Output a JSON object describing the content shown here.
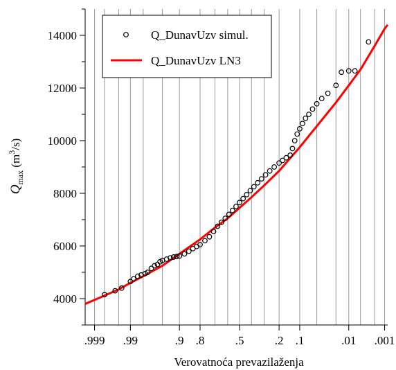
{
  "chart_data": {
    "type": "probability",
    "x_label": "Verovatnoća prevazilaženja",
    "y_label": {
      "symbol": "Q",
      "subscript": "max",
      "unit_open": " (m",
      "superscript": "3",
      "unit_close": "/s)"
    },
    "x_scale": "normal-probability",
    "xlim": [
      0.9995,
      0.0008
    ],
    "xticks": [
      {
        "value": 0.999,
        "label": ".999"
      },
      {
        "value": 0.99,
        "label": ".99"
      },
      {
        "value": 0.9,
        "label": ".9"
      },
      {
        "value": 0.8,
        "label": ".8"
      },
      {
        "value": 0.5,
        "label": ".5"
      },
      {
        "value": 0.2,
        "label": ".2"
      },
      {
        "value": 0.1,
        "label": ".1"
      },
      {
        "value": 0.01,
        "label": ".01"
      },
      {
        "value": 0.001,
        "label": ".001"
      }
    ],
    "xgrid": [
      0.999,
      0.998,
      0.995,
      0.99,
      0.98,
      0.95,
      0.9,
      0.8,
      0.7,
      0.6,
      0.5,
      0.4,
      0.3,
      0.2,
      0.1,
      0.05,
      0.02,
      0.01,
      0.005,
      0.002,
      0.001
    ],
    "ylim": [
      3000,
      15000
    ],
    "yticks": [
      4000,
      6000,
      8000,
      10000,
      12000,
      14000
    ],
    "yminor_ticks": [
      3000,
      5000,
      7000,
      9000,
      11000,
      13000,
      15000
    ],
    "grid": "x",
    "legend": "top-left",
    "series": [
      {
        "name": "Q_DunavUzv simul.",
        "type": "scatter",
        "color": "#000000",
        "x": [
          0.998,
          0.996,
          0.994,
          0.99,
          0.988,
          0.985,
          0.982,
          0.978,
          0.975,
          0.97,
          0.965,
          0.96,
          0.955,
          0.95,
          0.94,
          0.93,
          0.92,
          0.91,
          0.9,
          0.88,
          0.86,
          0.84,
          0.82,
          0.8,
          0.77,
          0.74,
          0.71,
          0.68,
          0.65,
          0.62,
          0.59,
          0.56,
          0.53,
          0.5,
          0.47,
          0.44,
          0.41,
          0.38,
          0.35,
          0.32,
          0.29,
          0.26,
          0.23,
          0.2,
          0.18,
          0.16,
          0.14,
          0.13,
          0.12,
          0.11,
          0.1,
          0.09,
          0.08,
          0.07,
          0.06,
          0.05,
          0.04,
          0.03,
          0.02,
          0.015,
          0.01,
          0.007,
          0.003
        ],
        "values": [
          4150,
          4300,
          4400,
          4650,
          4750,
          4850,
          4900,
          4950,
          5000,
          5150,
          5250,
          5300,
          5400,
          5450,
          5500,
          5550,
          5580,
          5600,
          5620,
          5700,
          5800,
          5900,
          5980,
          6050,
          6200,
          6350,
          6550,
          6750,
          6900,
          7050,
          7200,
          7350,
          7500,
          7650,
          7800,
          7950,
          8100,
          8250,
          8400,
          8550,
          8700,
          8850,
          9000,
          9150,
          9250,
          9350,
          9450,
          9700,
          10000,
          10250,
          10450,
          10650,
          10850,
          11000,
          11200,
          11400,
          11600,
          11800,
          12100,
          12600,
          12650,
          12650,
          13750
        ]
      },
      {
        "name": "Q_DunavUzv LN3",
        "type": "line",
        "color": "#ff0000",
        "x": [
          0.9995,
          0.999,
          0.995,
          0.99,
          0.98,
          0.95,
          0.9,
          0.8,
          0.7,
          0.6,
          0.5,
          0.4,
          0.3,
          0.2,
          0.1,
          0.05,
          0.02,
          0.01,
          0.005,
          0.002,
          0.001,
          0.0008
        ],
        "values": [
          3800,
          3950,
          4350,
          4600,
          4850,
          5250,
          5700,
          6250,
          6700,
          7050,
          7450,
          7850,
          8300,
          8850,
          9750,
          10550,
          11450,
          12100,
          12700,
          13600,
          14250,
          14400
        ]
      }
    ]
  }
}
